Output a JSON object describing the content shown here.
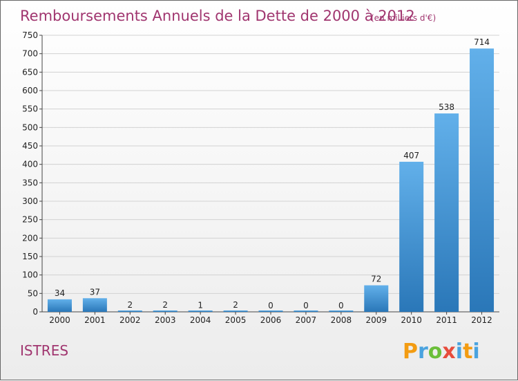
{
  "title": "Remboursements Annuels de la Dette de 2000 à 2012",
  "subtitle": "(en milliers d'€)",
  "city": "ISTRES",
  "logo": {
    "letters": [
      "P",
      "r",
      "o",
      "x",
      "i",
      "t",
      "i"
    ],
    "colors": [
      "#f39c12",
      "#4aa3df",
      "#6bbf3a",
      "#e74c3c",
      "#4aa3df",
      "#f39c12",
      "#4aa3df"
    ]
  },
  "colors": {
    "title": "#a0356f",
    "bar_top": "#62b0ea",
    "bar_bottom": "#2a77b8",
    "grid": "#d2d2d2"
  },
  "chart_data": {
    "type": "bar",
    "categories": [
      "2000",
      "2001",
      "2002",
      "2003",
      "2004",
      "2005",
      "2006",
      "2007",
      "2008",
      "2009",
      "2010",
      "2011",
      "2012"
    ],
    "values": [
      34,
      37,
      2,
      2,
      1,
      2,
      0,
      0,
      0,
      72,
      407,
      538,
      714
    ],
    "value_labels": [
      "34",
      "37",
      "2",
      "2",
      "1",
      "2",
      "0",
      "0",
      "0",
      "72",
      "407",
      "538",
      "714"
    ],
    "ylim": [
      0,
      750
    ],
    "yticks": [
      0,
      50,
      100,
      150,
      200,
      250,
      300,
      350,
      400,
      450,
      500,
      550,
      600,
      650,
      700,
      750
    ],
    "grid": true,
    "legend": "none"
  }
}
